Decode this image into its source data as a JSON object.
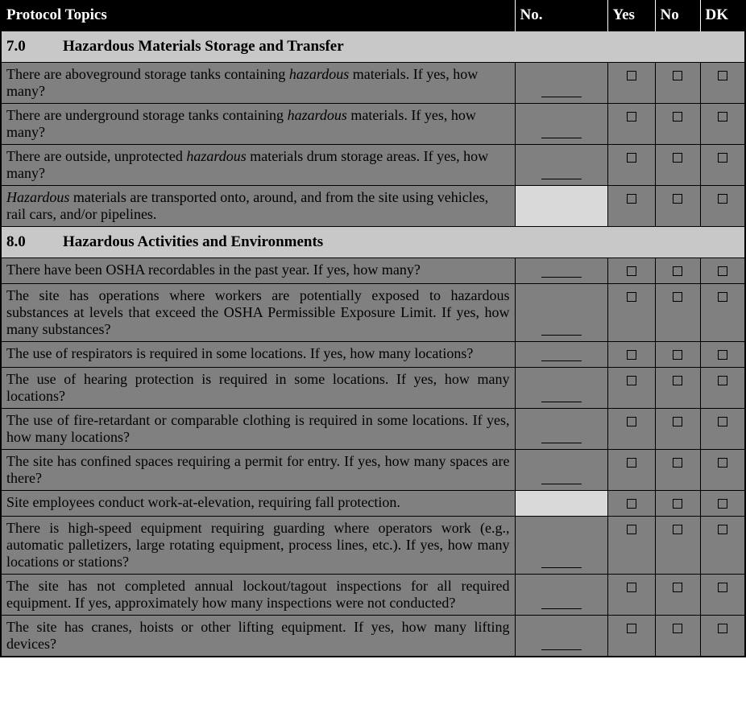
{
  "headers": {
    "topic": "Protocol Topics",
    "no": "No.",
    "yes": "Yes",
    "no2": "No",
    "dk": "DK"
  },
  "sections": [
    {
      "num": "7.0",
      "title": "Hazardous Materials Storage and Transfer",
      "rows": [
        {
          "html": "There are aboveground storage tanks containing <span class=\"italic\">hazardous</span> materials.  If yes, how many?",
          "hasNo": true,
          "justify": false
        },
        {
          "html": "There are underground storage tanks containing <span class=\"italic\">hazardous</span> materials.  If yes, how many?",
          "hasNo": true,
          "justify": false
        },
        {
          "html": "There are outside, unprotected <span class=\"italic\">hazardous</span> materials drum storage areas.  If yes, how many?",
          "hasNo": true,
          "justify": false
        },
        {
          "html": "<span class=\"italic\">Hazardous</span> materials are transported onto, around, and from the site using vehicles, rail cars, and/or pipelines.",
          "hasNo": false,
          "justify": false
        }
      ]
    },
    {
      "num": "8.0",
      "title": "Hazardous Activities and Environments",
      "rows": [
        {
          "html": "There have been OSHA recordables in the past year.  If yes, how many?",
          "hasNo": true,
          "justify": false
        },
        {
          "html": "The site has operations where workers are potentially exposed to hazardous substances at levels that exceed the OSHA Permissible Exposure Limit. If yes, how many substances?",
          "hasNo": true,
          "justify": true
        },
        {
          "html": "The use of respirators is required in some locations.  If yes, how many locations?",
          "hasNo": true,
          "justify": true
        },
        {
          "html": "The use of hearing protection is required in some locations.  If yes, how many locations?",
          "hasNo": true,
          "justify": true
        },
        {
          "html": "The use of fire-retardant or comparable clothing is required in some locations.  If yes, how many locations?",
          "hasNo": true,
          "justify": true
        },
        {
          "html": "The site has confined spaces requiring a permit for entry.  If yes, how many spaces are there?",
          "hasNo": true,
          "justify": true
        },
        {
          "html": "Site employees conduct work-at-elevation, requiring fall protection.",
          "hasNo": false,
          "justify": false
        },
        {
          "html": "There is high-speed equipment requiring guarding where operators work (e.g., automatic palletizers, large rotating equipment, process lines, etc.). If yes, how many locations or stations?",
          "hasNo": true,
          "justify": true
        },
        {
          "html": "The site has not completed annual lockout/tagout inspections for all required equipment. If yes, approximately how many inspections were not conducted?",
          "hasNo": true,
          "justify": true
        },
        {
          "html": "The site has cranes, hoists or other lifting equipment. If yes, how many lifting devices?",
          "hasNo": true,
          "justify": true
        }
      ]
    }
  ]
}
